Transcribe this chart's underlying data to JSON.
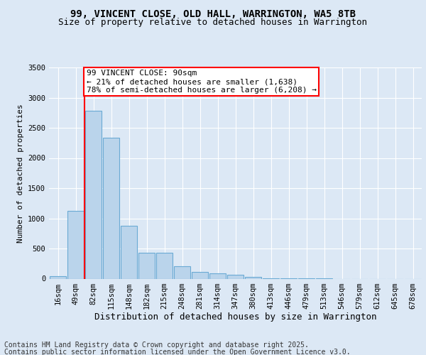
{
  "title1": "99, VINCENT CLOSE, OLD HALL, WARRINGTON, WA5 8TB",
  "title2": "Size of property relative to detached houses in Warrington",
  "xlabel": "Distribution of detached houses by size in Warrington",
  "ylabel": "Number of detached properties",
  "categories": [
    "16sqm",
    "49sqm",
    "82sqm",
    "115sqm",
    "148sqm",
    "182sqm",
    "215sqm",
    "248sqm",
    "281sqm",
    "314sqm",
    "347sqm",
    "380sqm",
    "413sqm",
    "446sqm",
    "479sqm",
    "513sqm",
    "546sqm",
    "579sqm",
    "612sqm",
    "645sqm",
    "678sqm"
  ],
  "values": [
    40,
    1120,
    2780,
    2330,
    880,
    430,
    430,
    205,
    110,
    90,
    60,
    30,
    10,
    5,
    2,
    1,
    0,
    0,
    0,
    0,
    0
  ],
  "bar_color": "#bad4eb",
  "bar_edge_color": "#6aaad4",
  "red_line_index": 2,
  "annotation_text": "99 VINCENT CLOSE: 90sqm\n← 21% of detached houses are smaller (1,638)\n78% of semi-detached houses are larger (6,208) →",
  "annotation_box_color": "white",
  "annotation_box_edge_color": "red",
  "background_color": "#dce8f5",
  "plot_bg_color": "#dce8f5",
  "footer1": "Contains HM Land Registry data © Crown copyright and database right 2025.",
  "footer2": "Contains public sector information licensed under the Open Government Licence v3.0.",
  "ylim": [
    0,
    3500
  ],
  "yticks": [
    0,
    500,
    1000,
    1500,
    2000,
    2500,
    3000,
    3500
  ],
  "title1_fontsize": 10,
  "title2_fontsize": 9,
  "ylabel_fontsize": 8,
  "xlabel_fontsize": 9,
  "annotation_fontsize": 8,
  "tick_fontsize": 7.5,
  "footer_fontsize": 7
}
